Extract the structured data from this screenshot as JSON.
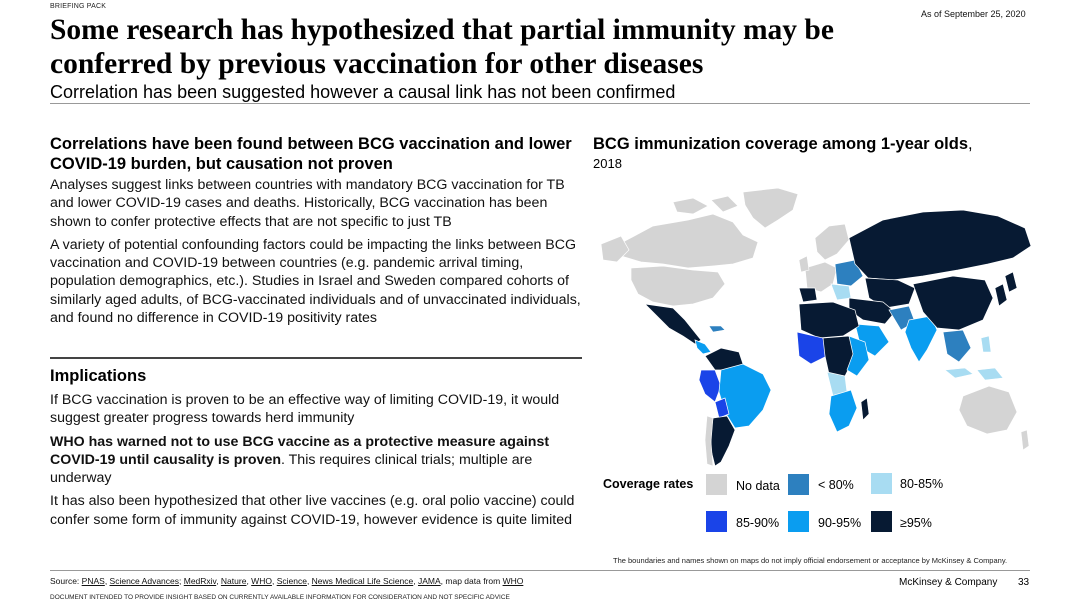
{
  "header": {
    "label": "BRIEFING PACK",
    "date": "As of September 25, 2020",
    "title": "Some research has hypothesized that partial immunity may be conferred by previous vaccination for other diseases",
    "subtitle": "Correlation has been suggested however a causal link has not been confirmed"
  },
  "left": {
    "section1": {
      "heading": "Correlations have been found between BCG vaccination and lower COVID-19 burden, but causation not proven",
      "p1": "Analyses suggest links between countries with mandatory BCG vaccination for TB and lower COVID-19 cases and deaths. Historically, BCG vaccination has been shown to confer protective effects that are not specific to just TB",
      "p2": "A variety of potential confounding factors could be impacting the links between BCG vaccination and COVID-19 between countries (e.g. pandemic arrival timing, population demographics, etc.). Studies in Israel and Sweden compared cohorts of similarly aged adults, of BCG-vaccinated individuals and of unvaccinated individuals, and found no difference in COVID-19 positivity rates"
    },
    "section2": {
      "heading": "Implications",
      "p1": "If BCG vaccination is proven to be an effective way of limiting COVID-19, it would suggest greater progress towards herd immunity",
      "p2_bold": "WHO has warned not to use BCG vaccine as a protective measure against COVID-19 until causality is proven",
      "p2_rest": ". This requires clinical trials; multiple are underway",
      "p3": "It has also been hypothesized that other live vaccines (e.g. oral polio vaccine) could confer some form of immunity against COVID-19, however evidence is quite limited"
    }
  },
  "map": {
    "title_bold": "BCG immunization coverage among 1-year olds",
    "title_comma": ",",
    "year": "2018",
    "legend_title": "Coverage rates",
    "legend": [
      {
        "label": "No data",
        "color": "#d4d4d4",
        "icon": "nodata-swatch"
      },
      {
        "label": "< 80%",
        "color": "#2d80bf",
        "icon": "lt80-swatch"
      },
      {
        "label": "80-85%",
        "color": "#a8dcf2",
        "icon": "80-85-swatch"
      },
      {
        "label": "85-90%",
        "color": "#1a44e8",
        "icon": "85-90-swatch"
      },
      {
        "label": "90-95%",
        "color": "#0a9df0",
        "icon": "90-95-swatch"
      },
      {
        "label": "≥95%",
        "color": "#071a33",
        "icon": "gte95-swatch"
      }
    ],
    "disclaimer": "The boundaries and names shown on maps do not imply official endorsement or acceptance by McKinsey & Company."
  },
  "footer": {
    "source_prefix": "Source: ",
    "sources": [
      "PNAS",
      "Science Advances",
      "MedRxiv",
      "Nature",
      "WHO",
      "Science",
      "News Medical Life Science",
      "JAMA"
    ],
    "separators": [
      ", ",
      "; ",
      ", ",
      ", ",
      ", ",
      ", ",
      ", ",
      ", "
    ],
    "map_data_text": "map data from ",
    "map_data_source": "WHO",
    "company": "McKinsey & Company",
    "page": "33",
    "disclaimer": "DOCUMENT INTENDED TO PROVIDE INSIGHT BASED ON CURRENTLY AVAILABLE INFORMATION FOR CONSIDERATION AND NOT SPECIFIC ADVICE"
  }
}
